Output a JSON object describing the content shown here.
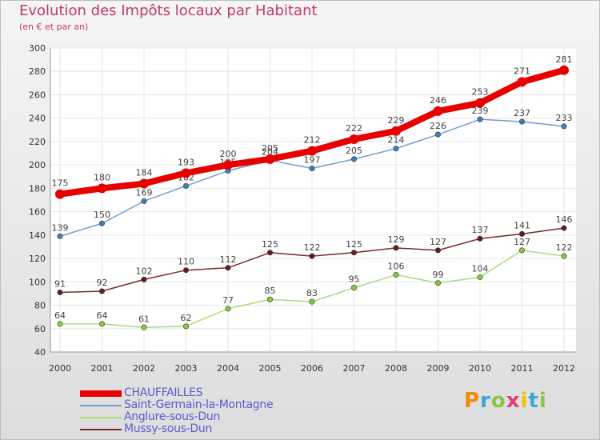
{
  "chart_data": {
    "type": "line",
    "title": "Evolution des Impôts locaux par Habitant",
    "subtitle": "(en € et par an)",
    "xlabel": "",
    "ylabel": "",
    "categories": [
      "2000",
      "2001",
      "2002",
      "2003",
      "2004",
      "2005",
      "2006",
      "2007",
      "2008",
      "2009",
      "2010",
      "2011",
      "2012"
    ],
    "ylim": [
      40,
      300
    ],
    "yticks": [
      40,
      60,
      80,
      100,
      120,
      140,
      160,
      180,
      200,
      220,
      240,
      260,
      280,
      300
    ],
    "grid": true,
    "series": [
      {
        "name": "CHAUFFAILLES",
        "color": "#e60000",
        "marker": "#e60000",
        "emphasis": true,
        "values": [
          175,
          180,
          184,
          193,
          200,
          205,
          212,
          222,
          229,
          246,
          253,
          271,
          281
        ]
      },
      {
        "name": "Saint-Germain-la-Montagne",
        "color": "#6f9fd0",
        "marker": "#3d7fc0",
        "emphasis": false,
        "values": [
          139,
          150,
          169,
          182,
          195,
          204,
          197,
          205,
          214,
          226,
          239,
          237,
          233
        ]
      },
      {
        "name": "Anglure-sous-Dun",
        "color": "#a9dc7c",
        "marker": "#7fcf3f",
        "emphasis": false,
        "values": [
          64,
          64,
          61,
          62,
          77,
          85,
          83,
          95,
          106,
          99,
          104,
          127,
          122
        ]
      },
      {
        "name": "Mussy-sous-Dun",
        "color": "#7a2a2a",
        "marker": "#6a1a1a",
        "emphasis": false,
        "values": [
          91,
          92,
          102,
          110,
          112,
          125,
          122,
          125,
          129,
          127,
          137,
          141,
          146
        ]
      }
    ]
  },
  "logo": {
    "letters": [
      "P",
      "r",
      "o",
      "x",
      "i",
      "t",
      "i"
    ]
  }
}
